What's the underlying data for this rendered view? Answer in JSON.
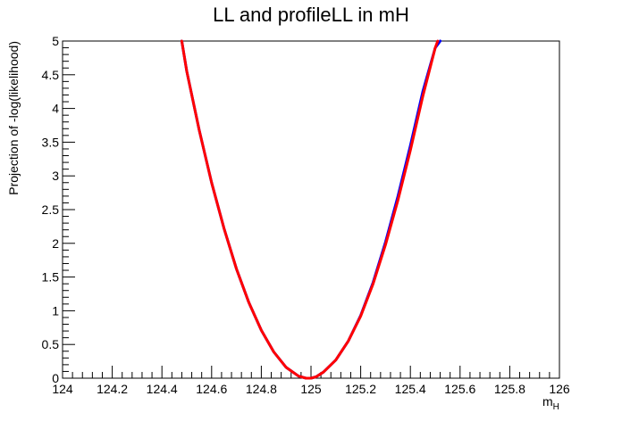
{
  "chart_data": {
    "type": "line",
    "title": "LL and profileLL in mH",
    "xlabel": "m",
    "xlabel_sub": "H",
    "ylabel": "Projection of -log(likelihood)",
    "xlim": [
      124,
      126
    ],
    "ylim": [
      0,
      5
    ],
    "x_ticks": [
      124,
      124.2,
      124.4,
      124.6,
      124.8,
      125,
      125.2,
      125.4,
      125.6,
      125.8,
      126
    ],
    "x_tick_labels": [
      "124",
      "124.2",
      "124.4",
      "124.6",
      "124.8",
      "125",
      "125.2",
      "125.4",
      "125.6",
      "125.8",
      "126"
    ],
    "y_ticks": [
      0,
      0.5,
      1,
      1.5,
      2,
      2.5,
      3,
      3.5,
      4,
      4.5,
      5
    ],
    "y_tick_labels": [
      "0",
      "0.5",
      "1",
      "1.5",
      "2",
      "2.5",
      "3",
      "3.5",
      "4",
      "4.5",
      "5"
    ],
    "grid": false,
    "legend": "none",
    "series": [
      {
        "color": "#0000ff",
        "x": [
          124.48,
          124.5,
          124.55,
          124.6,
          124.65,
          124.7,
          124.75,
          124.8,
          124.85,
          124.9,
          124.95,
          124.98,
          125.0,
          125.02,
          125.05,
          125.1,
          125.15,
          125.2,
          125.25,
          125.3,
          125.35,
          125.4,
          125.45,
          125.5,
          125.52
        ],
        "y": [
          5.0,
          4.55,
          3.68,
          2.9,
          2.22,
          1.62,
          1.12,
          0.71,
          0.39,
          0.16,
          0.03,
          0.0,
          0.0,
          0.02,
          0.09,
          0.27,
          0.55,
          0.93,
          1.42,
          2.02,
          2.7,
          3.45,
          4.25,
          4.9,
          5.0
        ]
      },
      {
        "color": "#ff0000",
        "x": [
          124.48,
          124.5,
          124.55,
          124.6,
          124.65,
          124.7,
          124.75,
          124.8,
          124.85,
          124.9,
          124.95,
          124.98,
          125.0,
          125.02,
          125.05,
          125.1,
          125.15,
          125.2,
          125.25,
          125.3,
          125.35,
          125.4,
          125.45,
          125.5,
          125.51
        ],
        "y": [
          5.0,
          4.55,
          3.68,
          2.9,
          2.22,
          1.62,
          1.12,
          0.71,
          0.39,
          0.16,
          0.03,
          0.0,
          0.0,
          0.02,
          0.09,
          0.27,
          0.55,
          0.92,
          1.4,
          1.98,
          2.64,
          3.38,
          4.18,
          4.9,
          5.0
        ]
      }
    ]
  }
}
